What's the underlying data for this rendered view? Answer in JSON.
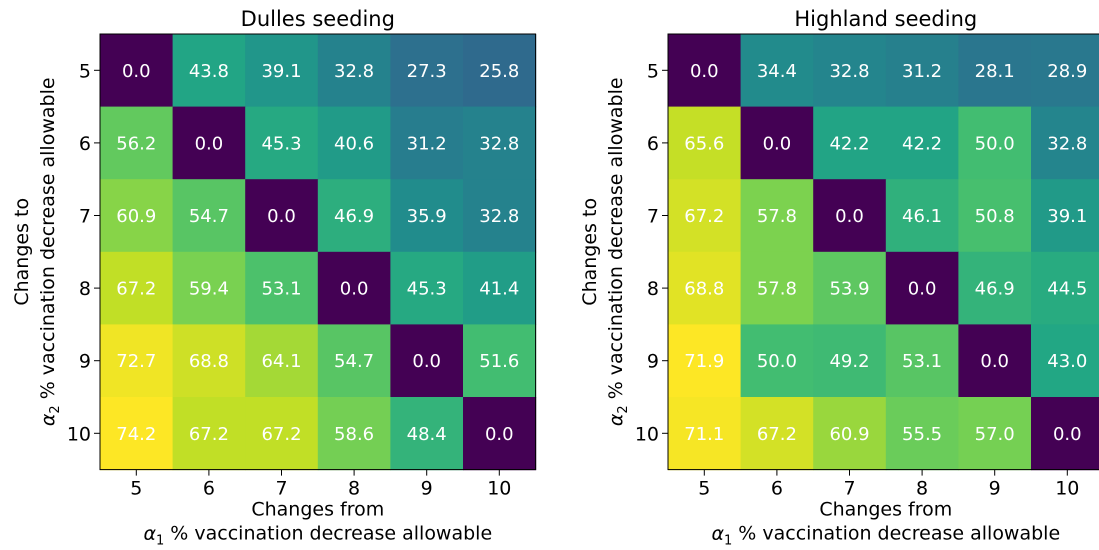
{
  "chart_data": [
    {
      "type": "heatmap",
      "title": "Dulles seeding",
      "xlabel_line1": "Changes from",
      "xlabel_line2": "α₁ % vaccination decrease allowable",
      "ylabel_line1": "Changes to",
      "ylabel_line2": "α₂ % vaccination decrease allowable",
      "x_categories": [
        "5",
        "6",
        "7",
        "8",
        "9",
        "10"
      ],
      "y_categories": [
        "5",
        "6",
        "7",
        "8",
        "9",
        "10"
      ],
      "values": [
        [
          0.0,
          43.8,
          39.1,
          32.8,
          27.3,
          25.8
        ],
        [
          56.2,
          0.0,
          45.3,
          40.6,
          31.2,
          32.8
        ],
        [
          60.9,
          54.7,
          0.0,
          46.9,
          35.9,
          32.8
        ],
        [
          67.2,
          59.4,
          53.1,
          0.0,
          45.3,
          41.4
        ],
        [
          72.7,
          68.8,
          64.1,
          54.7,
          0.0,
          51.6
        ],
        [
          74.2,
          67.2,
          67.2,
          58.6,
          48.4,
          0.0
        ]
      ],
      "value_format": "1 decimal",
      "colormap": "viridis",
      "grid": false
    },
    {
      "type": "heatmap",
      "title": "Highland seeding",
      "xlabel_line1": "Changes from",
      "xlabel_line2": "α₁ % vaccination decrease allowable",
      "ylabel_line1": "Changes to",
      "ylabel_line2": "α₂ % vaccination decrease allowable",
      "x_categories": [
        "5",
        "6",
        "7",
        "8",
        "9",
        "10"
      ],
      "y_categories": [
        "5",
        "6",
        "7",
        "8",
        "9",
        "10"
      ],
      "values": [
        [
          0.0,
          34.4,
          32.8,
          31.2,
          28.1,
          28.9
        ],
        [
          65.6,
          0.0,
          42.2,
          42.2,
          50.0,
          32.8
        ],
        [
          67.2,
          57.8,
          0.0,
          46.1,
          50.8,
          39.1
        ],
        [
          68.8,
          57.8,
          53.9,
          0.0,
          46.9,
          44.5
        ],
        [
          71.9,
          50.0,
          49.2,
          53.1,
          0.0,
          43.0
        ],
        [
          71.1,
          67.2,
          60.9,
          55.5,
          57.0,
          0.0
        ]
      ],
      "value_format": "1 decimal",
      "colormap": "viridis",
      "grid": false
    }
  ]
}
